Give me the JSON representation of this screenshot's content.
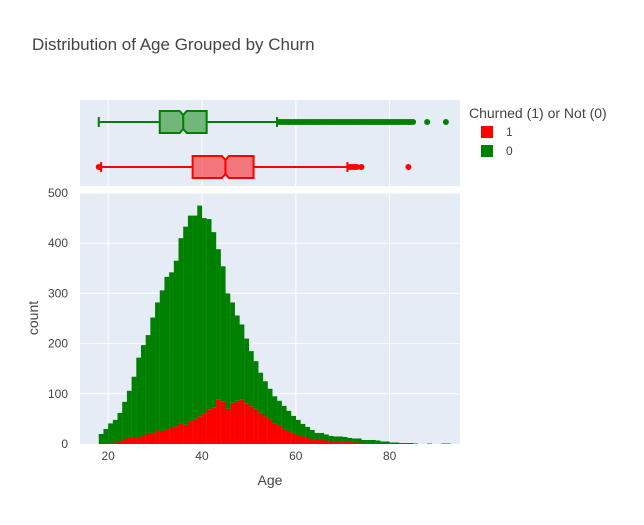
{
  "chart_data": {
    "type": "histogram",
    "title": "Distribution of Age Grouped by Churn",
    "xlabel": "Age",
    "ylabel": "count",
    "xlim": [
      14,
      95
    ],
    "ylim": [
      0,
      500
    ],
    "xticks": [
      20,
      40,
      60,
      80
    ],
    "yticks": [
      0,
      100,
      200,
      300,
      400,
      500
    ],
    "barmode": "stack",
    "legend": {
      "title": "Churned (1) or Not (0)",
      "position": "right"
    },
    "grid": true,
    "bin_start": 18,
    "bin_width": 1,
    "series": [
      {
        "name": "1",
        "color": "#ff0000",
        "counts": [
          0,
          2,
          1,
          3,
          6,
          10,
          12,
          14,
          12,
          17,
          22,
          22,
          27,
          26,
          28,
          32,
          35,
          40,
          38,
          45,
          50,
          55,
          60,
          68,
          72,
          88,
          84,
          70,
          82,
          86,
          88,
          80,
          75,
          70,
          62,
          55,
          48,
          40,
          36,
          30,
          26,
          22,
          18,
          15,
          12,
          10,
          8,
          8,
          7,
          6,
          5,
          5,
          4,
          4,
          3,
          3,
          2,
          2,
          2,
          2,
          1,
          1,
          1,
          1,
          1,
          1,
          1,
          0,
          0,
          0,
          0,
          0,
          0,
          0,
          0
        ],
        "box": {
          "min": 18.5,
          "q1": 38,
          "median": 45,
          "q3": 51,
          "max": 71,
          "outliers": [
            18,
            71.5,
            72,
            72.5,
            73,
            74,
            84
          ]
        }
      },
      {
        "name": "0",
        "color": "#008000",
        "counts": [
          20,
          28,
          40,
          45,
          56,
          74,
          94,
          120,
          160,
          180,
          195,
          230,
          255,
          280,
          305,
          310,
          330,
          370,
          395,
          410,
          405,
          420,
          390,
          380,
          350,
          300,
          270,
          230,
          200,
          170,
          150,
          130,
          110,
          95,
          80,
          70,
          62,
          55,
          50,
          46,
          40,
          34,
          30,
          25,
          22,
          18,
          14,
          14,
          12,
          10,
          10,
          10,
          10,
          8,
          8,
          8,
          6,
          6,
          6,
          5,
          4,
          4,
          2,
          2,
          1,
          1,
          1,
          1,
          0,
          0,
          1,
          0,
          0,
          1,
          1
        ],
        "box": {
          "min": 18,
          "q1": 31,
          "median": 36,
          "q3": 41,
          "max": 56,
          "outliers": [
            56.5,
            57,
            57.5,
            58,
            58.5,
            59,
            59.5,
            60,
            60.5,
            61,
            61.5,
            62,
            62.5,
            63,
            63.5,
            64,
            64.5,
            65,
            65.5,
            66,
            66.5,
            67,
            67.5,
            68,
            68.5,
            69,
            69.5,
            70,
            70.5,
            71,
            71.5,
            72,
            72.5,
            73,
            73.5,
            74,
            74.5,
            75,
            75.5,
            76,
            76.5,
            77,
            77.5,
            78,
            78.5,
            79,
            79.5,
            80,
            80.5,
            81,
            81.5,
            82,
            82.5,
            83,
            83.5,
            84,
            84.5,
            85,
            88,
            92
          ]
        }
      }
    ]
  }
}
